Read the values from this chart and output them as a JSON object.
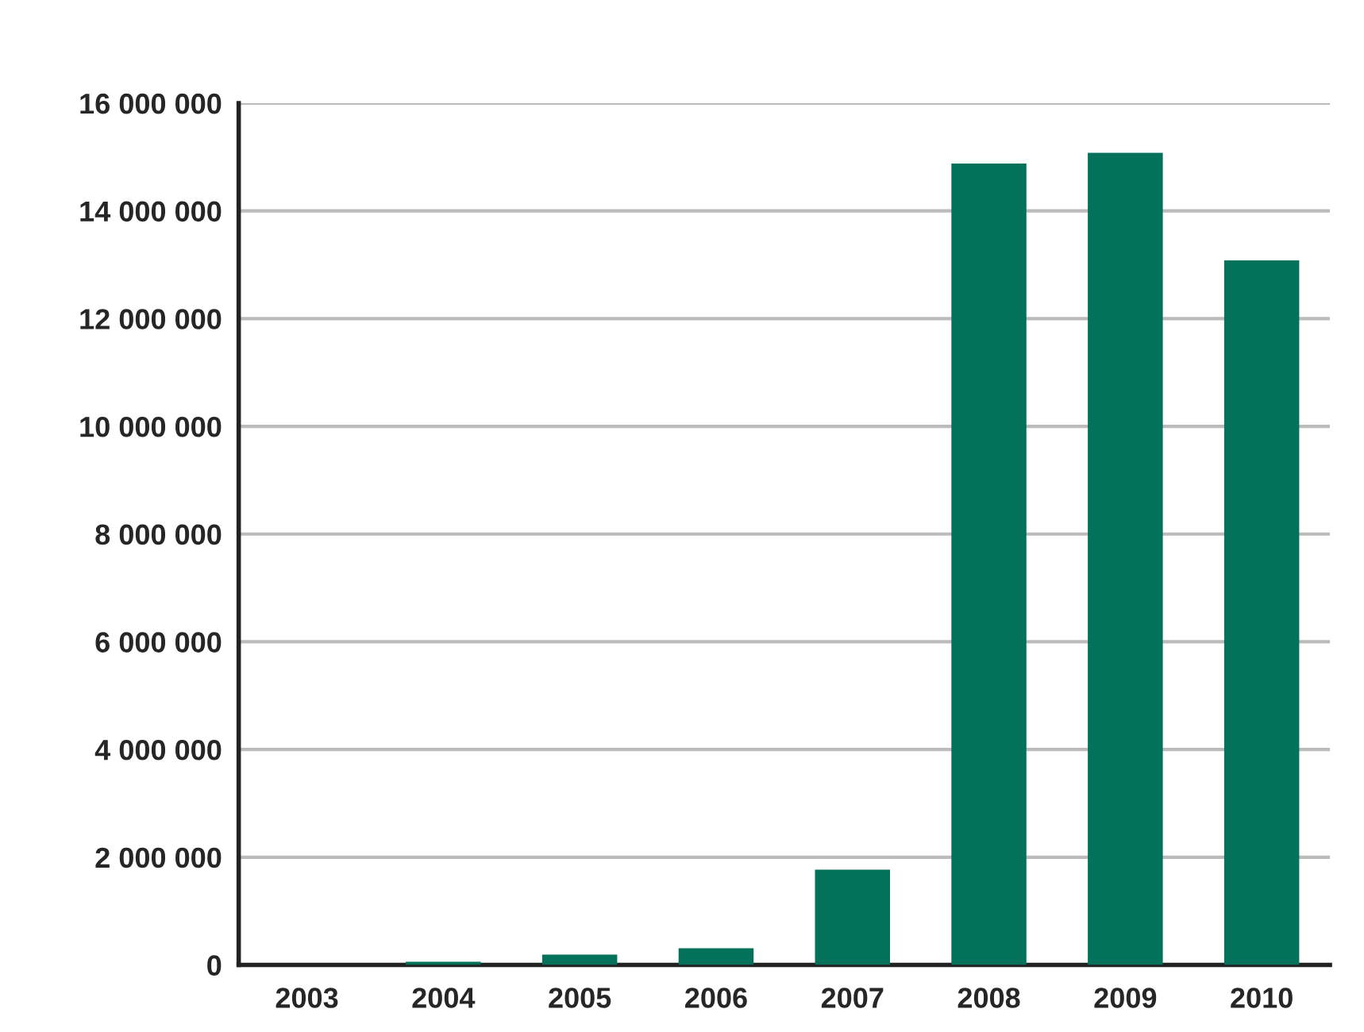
{
  "chart_data": {
    "type": "bar",
    "categories": [
      "2003",
      "2004",
      "2005",
      "2006",
      "2007",
      "2008",
      "2009",
      "2010"
    ],
    "values": [
      0,
      60000,
      190000,
      310000,
      1770000,
      14880000,
      15080000,
      13080000
    ],
    "color": "#04725a",
    "ylim": [
      0,
      16000000
    ],
    "yticks": [
      {
        "value": 0,
        "label": "0"
      },
      {
        "value": 2000000,
        "label": "2 000 000"
      },
      {
        "value": 4000000,
        "label": "4 000 000"
      },
      {
        "value": 6000000,
        "label": "6 000 000"
      },
      {
        "value": 8000000,
        "label": "8 000 000"
      },
      {
        "value": 10000000,
        "label": "10 000 000"
      },
      {
        "value": 12000000,
        "label": "12 000 000"
      },
      {
        "value": 14000000,
        "label": "14 000 000"
      },
      {
        "value": 16000000,
        "label": "16 000 000"
      }
    ],
    "grid": "y"
  }
}
